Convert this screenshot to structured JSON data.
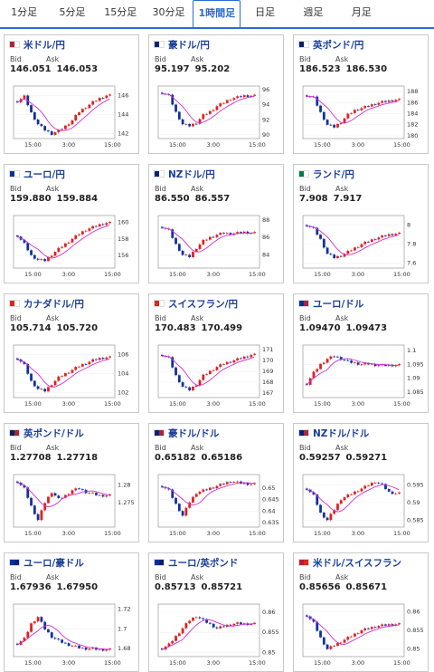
{
  "tabs": [
    {
      "label": "1分足",
      "active": false
    },
    {
      "label": "5分足",
      "active": false
    },
    {
      "label": "15分足",
      "active": false
    },
    {
      "label": "30分足",
      "active": false
    },
    {
      "label": "1時間足",
      "active": true
    },
    {
      "label": "日足",
      "active": false
    },
    {
      "label": "週足",
      "active": false
    },
    {
      "label": "月足",
      "active": false
    }
  ],
  "bid_label": "Bid",
  "ask_label": "Ask",
  "colors": {
    "up": "#e02020",
    "down": "#1030a0",
    "ma": "#d030d0",
    "accent": "#2a6bd4"
  },
  "cards": [
    {
      "pair": "米ドル/円",
      "flag": "us-jp",
      "bid": "146.051",
      "ask": "146.053",
      "ticks_y": [
        "146",
        "144",
        "142"
      ],
      "ticks_x": [
        "15:00",
        "3:00",
        "15:00"
      ],
      "ylim": [
        141.5,
        147
      ],
      "closes": [
        145.4,
        145.9,
        144.2,
        143.0,
        142.4,
        142.0,
        142.3,
        142.8,
        143.4,
        144.3,
        144.8,
        145.3,
        145.7,
        146.0
      ]
    },
    {
      "pair": "豪ドル/円",
      "flag": "au-jp",
      "bid": "95.197",
      "ask": "95.202",
      "ticks_y": [
        "96",
        "94",
        "92",
        "90"
      ],
      "ticks_x": [
        "15:00",
        "3:00",
        "15:00"
      ],
      "ylim": [
        89.5,
        96.5
      ],
      "closes": [
        95.6,
        95.2,
        93.0,
        91.4,
        91.2,
        91.6,
        92.6,
        93.1,
        93.8,
        94.3,
        94.8,
        95.0,
        95.2,
        95.2
      ]
    },
    {
      "pair": "英ポンド/円",
      "flag": "gb-jp",
      "bid": "186.523",
      "ask": "186.530",
      "ticks_y": [
        "188",
        "186",
        "184",
        "182",
        "180"
      ],
      "ticks_x": [
        "15:00",
        "3:00",
        "15:00"
      ],
      "ylim": [
        179.5,
        189
      ],
      "closes": [
        187.3,
        186.9,
        184.2,
        182.0,
        181.6,
        182.5,
        183.8,
        184.6,
        185.0,
        185.4,
        185.8,
        186.1,
        186.3,
        186.5
      ]
    },
    {
      "pair": "ユーロ/円",
      "flag": "eu-jp",
      "bid": "159.880",
      "ask": "159.884",
      "ticks_y": [
        "160",
        "158",
        "156"
      ],
      "ticks_x": [
        "15:00",
        "3:00",
        "15:00"
      ],
      "ylim": [
        154.5,
        160.8
      ],
      "closes": [
        158.4,
        157.4,
        156.0,
        155.5,
        155.4,
        156.1,
        156.8,
        157.4,
        158.0,
        158.6,
        159.1,
        159.4,
        159.7,
        159.9
      ]
    },
    {
      "pair": "NZドル/円",
      "flag": "nz-jp",
      "bid": "86.550",
      "ask": "86.557",
      "ticks_y": [
        "88",
        "86",
        "84"
      ],
      "ticks_x": [
        "15:00",
        "3:00",
        "15:00"
      ],
      "ylim": [
        82.5,
        88.5
      ],
      "closes": [
        87.2,
        86.8,
        85.2,
        84.0,
        83.8,
        84.8,
        85.6,
        86.0,
        86.3,
        86.5,
        86.4,
        86.5,
        86.6,
        86.5
      ]
    },
    {
      "pair": "ランド/円",
      "flag": "za-jp",
      "bid": "7.908",
      "ask": "7.917",
      "ticks_y": [
        "8",
        "7.8",
        "7.6"
      ],
      "ticks_x": [
        "15:00",
        "3:00",
        "15:00"
      ],
      "ylim": [
        7.55,
        8.1
      ],
      "closes": [
        8.0,
        7.96,
        7.85,
        7.7,
        7.66,
        7.68,
        7.72,
        7.76,
        7.8,
        7.83,
        7.86,
        7.88,
        7.9,
        7.91
      ]
    },
    {
      "pair": "カナダドル/円",
      "flag": "ca-jp",
      "bid": "105.714",
      "ask": "105.720",
      "ticks_y": [
        "106",
        "104",
        "102"
      ],
      "ticks_x": [
        "15:00",
        "3:00",
        "15:00"
      ],
      "ylim": [
        101.5,
        107
      ],
      "closes": [
        105.6,
        104.9,
        103.2,
        102.4,
        102.2,
        102.9,
        103.6,
        104.0,
        104.4,
        104.8,
        105.1,
        105.4,
        105.6,
        105.7
      ]
    },
    {
      "pair": "スイスフラン/円",
      "flag": "ch-jp",
      "bid": "170.483",
      "ask": "170.499",
      "ticks_y": [
        "171",
        "170",
        "169",
        "168",
        "167"
      ],
      "ticks_x": [
        "15:00",
        "3:00",
        "15:00"
      ],
      "ylim": [
        166.6,
        171.4
      ],
      "closes": [
        170.5,
        170.2,
        168.6,
        167.6,
        167.3,
        167.8,
        168.6,
        169.0,
        169.4,
        169.7,
        169.9,
        170.1,
        170.3,
        170.5
      ]
    },
    {
      "pair": "ユーロ/ドル",
      "flag": "eu-us",
      "bid": "1.09470",
      "ask": "1.09473",
      "ticks_y": [
        "1.1",
        "1.095",
        "1.09",
        "1.085"
      ],
      "ticks_x": [
        "15:00",
        "3:00",
        "15:00"
      ],
      "ylim": [
        1.083,
        1.102
      ],
      "closes": [
        1.088,
        1.092,
        1.095,
        1.097,
        1.098,
        1.097,
        1.096,
        1.0955,
        1.095,
        1.0952,
        1.0948,
        1.0946,
        1.0947,
        1.0947
      ]
    },
    {
      "pair": "英ポンド/ドル",
      "flag": "gb-us",
      "bid": "1.27708",
      "ask": "1.27718",
      "ticks_y": [
        "1.28",
        "1.275"
      ],
      "ticks_x": [
        "15:00",
        "3:00",
        "15:00"
      ],
      "ylim": [
        1.268,
        1.283
      ],
      "closes": [
        1.281,
        1.279,
        1.274,
        1.27,
        1.275,
        1.278,
        1.276,
        1.277,
        1.2785,
        1.279,
        1.278,
        1.2775,
        1.277,
        1.277
      ]
    },
    {
      "pair": "豪ドル/ドル",
      "flag": "au-us",
      "bid": "0.65182",
      "ask": "0.65186",
      "ticks_y": [
        "0.65",
        "0.645",
        "0.64",
        "0.635"
      ],
      "ticks_x": [
        "15:00",
        "3:00",
        "15:00"
      ],
      "ylim": [
        0.633,
        0.656
      ],
      "closes": [
        0.651,
        0.649,
        0.643,
        0.638,
        0.644,
        0.648,
        0.649,
        0.65,
        0.651,
        0.652,
        0.653,
        0.6525,
        0.652,
        0.6518
      ]
    },
    {
      "pair": "NZドル/ドル",
      "flag": "nz-us",
      "bid": "0.59257",
      "ask": "0.59271",
      "ticks_y": [
        "0.595",
        "0.59",
        "0.585"
      ],
      "ticks_x": [
        "15:00",
        "3:00",
        "15:00"
      ],
      "ylim": [
        0.583,
        0.598
      ],
      "closes": [
        0.594,
        0.592,
        0.587,
        0.585,
        0.588,
        0.591,
        0.592,
        0.593,
        0.594,
        0.595,
        0.596,
        0.595,
        0.593,
        0.5926
      ]
    },
    {
      "pair": "ユーロ/豪ドル",
      "flag": "eu-au",
      "bid": "1.67936",
      "ask": "1.67950",
      "ticks_y": [
        "1.72",
        "1.7",
        "1.68"
      ],
      "ticks_x": [
        "15:00",
        "3:00",
        "15:00"
      ],
      "ylim": [
        1.672,
        1.725
      ],
      "closes": [
        1.685,
        1.69,
        1.705,
        1.712,
        1.7,
        1.692,
        1.688,
        1.685,
        1.683,
        1.681,
        1.68,
        1.68,
        1.679,
        1.679
      ]
    },
    {
      "pair": "ユーロ/英ポンド",
      "flag": "eu-gb",
      "bid": "0.85713",
      "ask": "0.85721",
      "ticks_y": [
        "0.86",
        "0.855",
        "0.85"
      ],
      "ticks_x": [
        "15:00",
        "3:00",
        "15:00"
      ],
      "ylim": [
        0.849,
        0.862
      ],
      "closes": [
        0.851,
        0.852,
        0.854,
        0.856,
        0.858,
        0.859,
        0.858,
        0.857,
        0.856,
        0.8565,
        0.857,
        0.8572,
        0.8571,
        0.8571
      ]
    },
    {
      "pair": "米ドル/スイスフラン",
      "flag": "us-ch",
      "bid": "0.85656",
      "ask": "0.85671",
      "ticks_y": [
        "0.86",
        "0.855",
        "0.85"
      ],
      "ticks_x": [
        "15:00",
        "3:00",
        "15:00"
      ],
      "ylim": [
        0.848,
        0.862
      ],
      "closes": [
        0.859,
        0.857,
        0.853,
        0.85,
        0.851,
        0.852,
        0.853,
        0.854,
        0.855,
        0.8555,
        0.856,
        0.8563,
        0.8565,
        0.8566
      ]
    }
  ]
}
